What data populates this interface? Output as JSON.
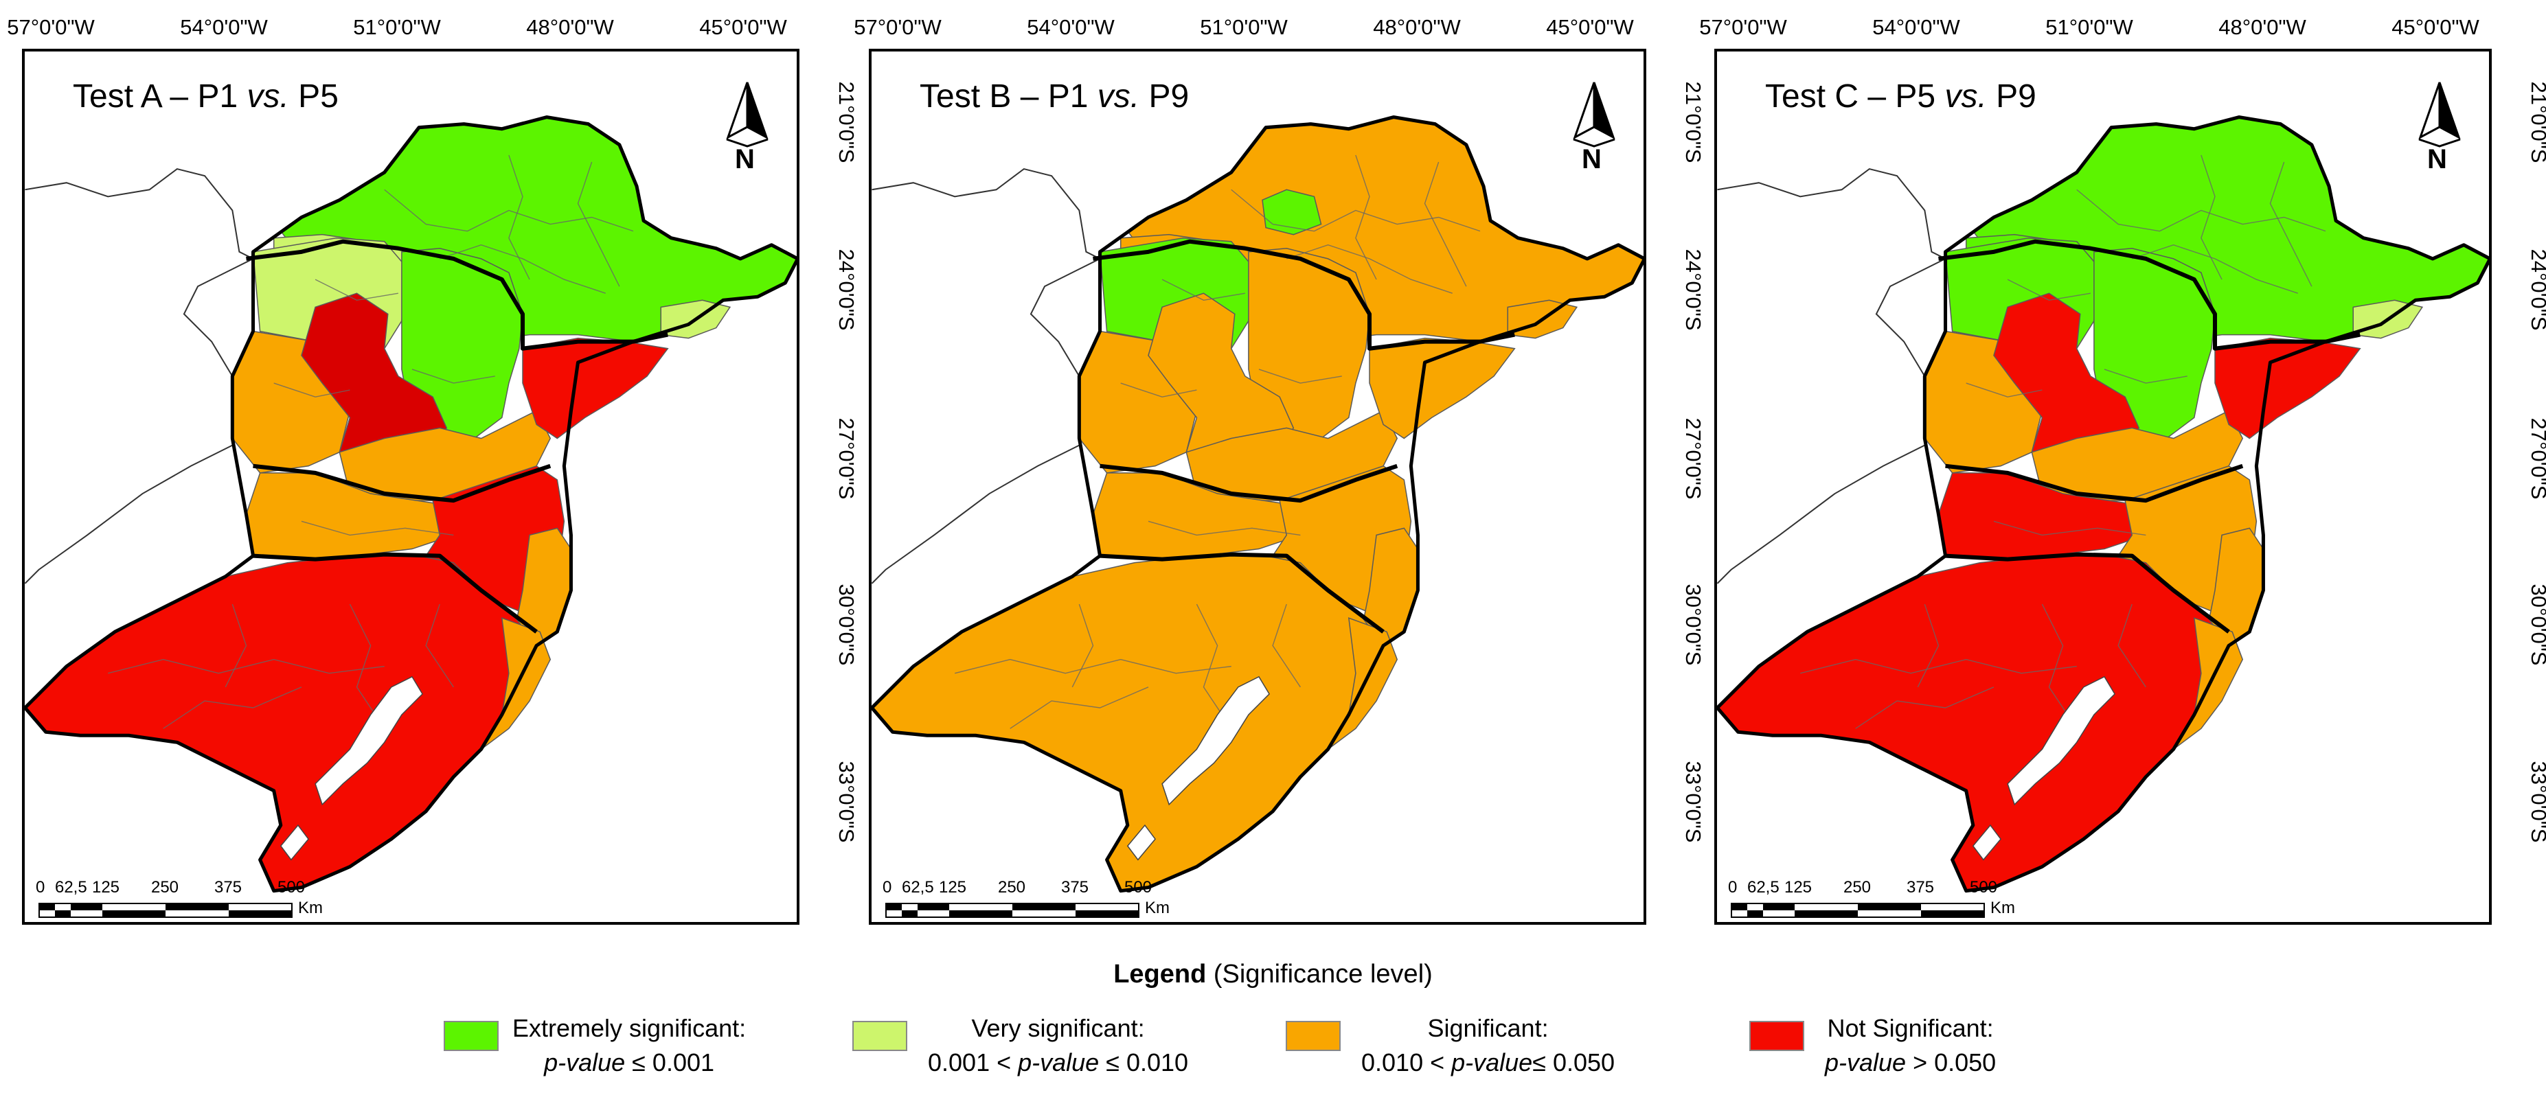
{
  "map": {
    "longitude_labels": [
      "57°0'0\"W",
      "54°0'0\"W",
      "51°0'0\"W",
      "48°0'0\"W",
      "45°0'0\"W"
    ],
    "latitude_labels": [
      "21°0'0\"S",
      "24°0'0\"S",
      "27°0'0\"S",
      "30°0'0\"S",
      "33°0'0\"S"
    ],
    "north_label": "N",
    "scale": {
      "ticks": [
        "0",
        "62,5",
        "125",
        "250",
        "375",
        "500"
      ],
      "unit": "Km"
    },
    "colors": {
      "extremely": "#5cf400",
      "very": "#cdf56c",
      "significant": "#f9a600",
      "not": "#f40a00",
      "not_dark": "#d90000",
      "border_state": "#000000",
      "border_region": "#555555",
      "lake": "#ffffff"
    },
    "panels": [
      {
        "title_prefix": "Test A – P1 ",
        "title_vs": "vs.",
        "title_suffix": " P5",
        "fills": {
          "sp_main": "extremely",
          "sp_west": "very",
          "sp_east": "very",
          "pr_west": "significant",
          "pr_nw": "very",
          "pr_center": "not_dark",
          "pr_ne": "extremely",
          "pr_south": "significant",
          "pr_coast": "not",
          "sc_west": "significant",
          "sc_east": "not",
          "sc_coast": "significant",
          "rs_main": "not",
          "rs_coast": "significant"
        }
      },
      {
        "title_prefix": "Test B – P1 ",
        "title_vs": "vs.",
        "title_suffix": " P9",
        "fills": {
          "sp_main": "significant",
          "sp_west": "significant",
          "sp_east": "significant",
          "sp_spot": "extremely",
          "pr_west": "significant",
          "pr_nw": "extremely",
          "pr_center": "significant",
          "pr_ne": "significant",
          "pr_south": "significant",
          "pr_coast": "significant",
          "sc_west": "significant",
          "sc_east": "significant",
          "sc_coast": "significant",
          "rs_main": "significant",
          "rs_coast": "significant"
        }
      },
      {
        "title_prefix": "Test C – P5 ",
        "title_vs": "vs.",
        "title_suffix": " P9",
        "fills": {
          "sp_main": "extremely",
          "sp_west": "extremely",
          "sp_east": "very",
          "pr_west": "significant",
          "pr_nw": "extremely",
          "pr_center": "not",
          "pr_ne": "extremely",
          "pr_south": "significant",
          "pr_coast": "not",
          "sc_west": "not",
          "sc_east": "significant",
          "sc_coast": "significant",
          "rs_main": "not",
          "rs_coast": "significant"
        }
      }
    ]
  },
  "legend": {
    "title_bold": "Legend",
    "title_rest": " (Significance level)",
    "items": [
      {
        "key": "extremely",
        "line1": "Extremely significant:",
        "line2_italic": "p-value",
        "line2_rest": " ≤ 0.001",
        "line2_prefix": ""
      },
      {
        "key": "very",
        "line1": "Very significant:",
        "line2_prefix": "0.001 < ",
        "line2_italic": "p-value",
        "line2_rest": " ≤ 0.010"
      },
      {
        "key": "significant",
        "line1": "Significant:",
        "line2_prefix": "0.010 < ",
        "line2_italic": "p-value",
        "line2_rest": "≤  0.050"
      },
      {
        "key": "not",
        "line1": "Not Significant:",
        "line2_prefix": "",
        "line2_italic": "p-value",
        "line2_rest": " > 0.050"
      }
    ]
  }
}
